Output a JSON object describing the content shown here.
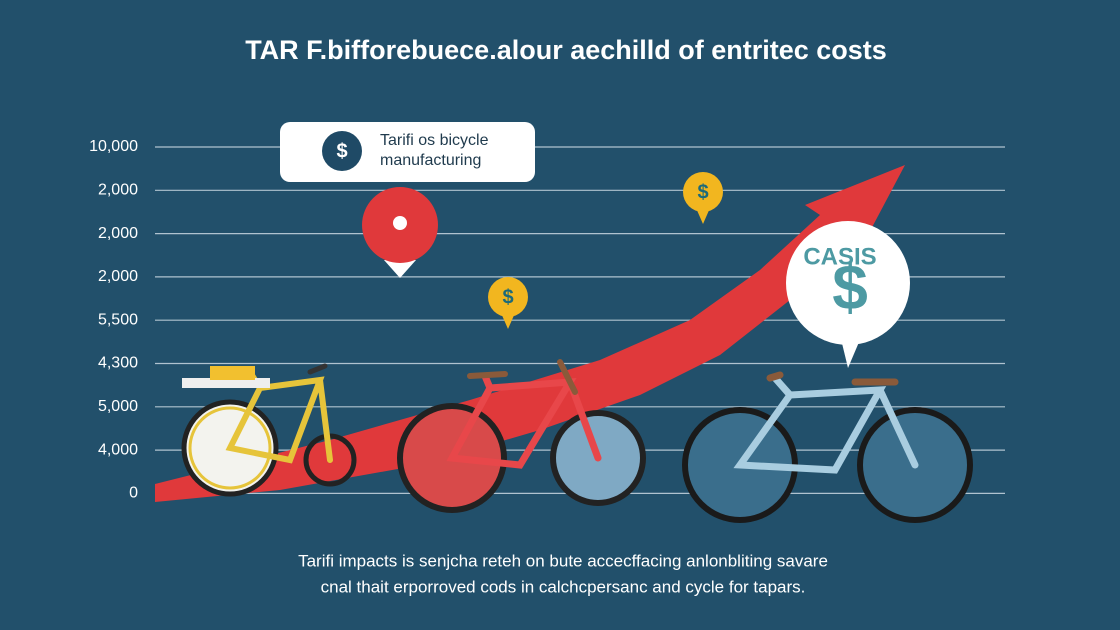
{
  "title": "TAR F.bifforebuece.alour aechilld of entritec costs",
  "axis_labels": [
    "10,000",
    "2,000",
    "2,000",
    "2,000",
    "5,500",
    "4,300",
    "5,000",
    "4,000",
    "0"
  ],
  "callout": {
    "icon": "$",
    "lines": [
      "Tarifi os bicycle",
      "manufacturing"
    ]
  },
  "coins": [
    "$",
    "$"
  ],
  "costs_bubble": {
    "label": "CASIS",
    "symbol": "$"
  },
  "caption": {
    "lines": [
      "Tarifi impacts is senjcha reteh on bute accecffacing anlonbliting savare",
      "cnal thait erporroved cods in calchcpersanc and cycle for tapars."
    ]
  }
}
